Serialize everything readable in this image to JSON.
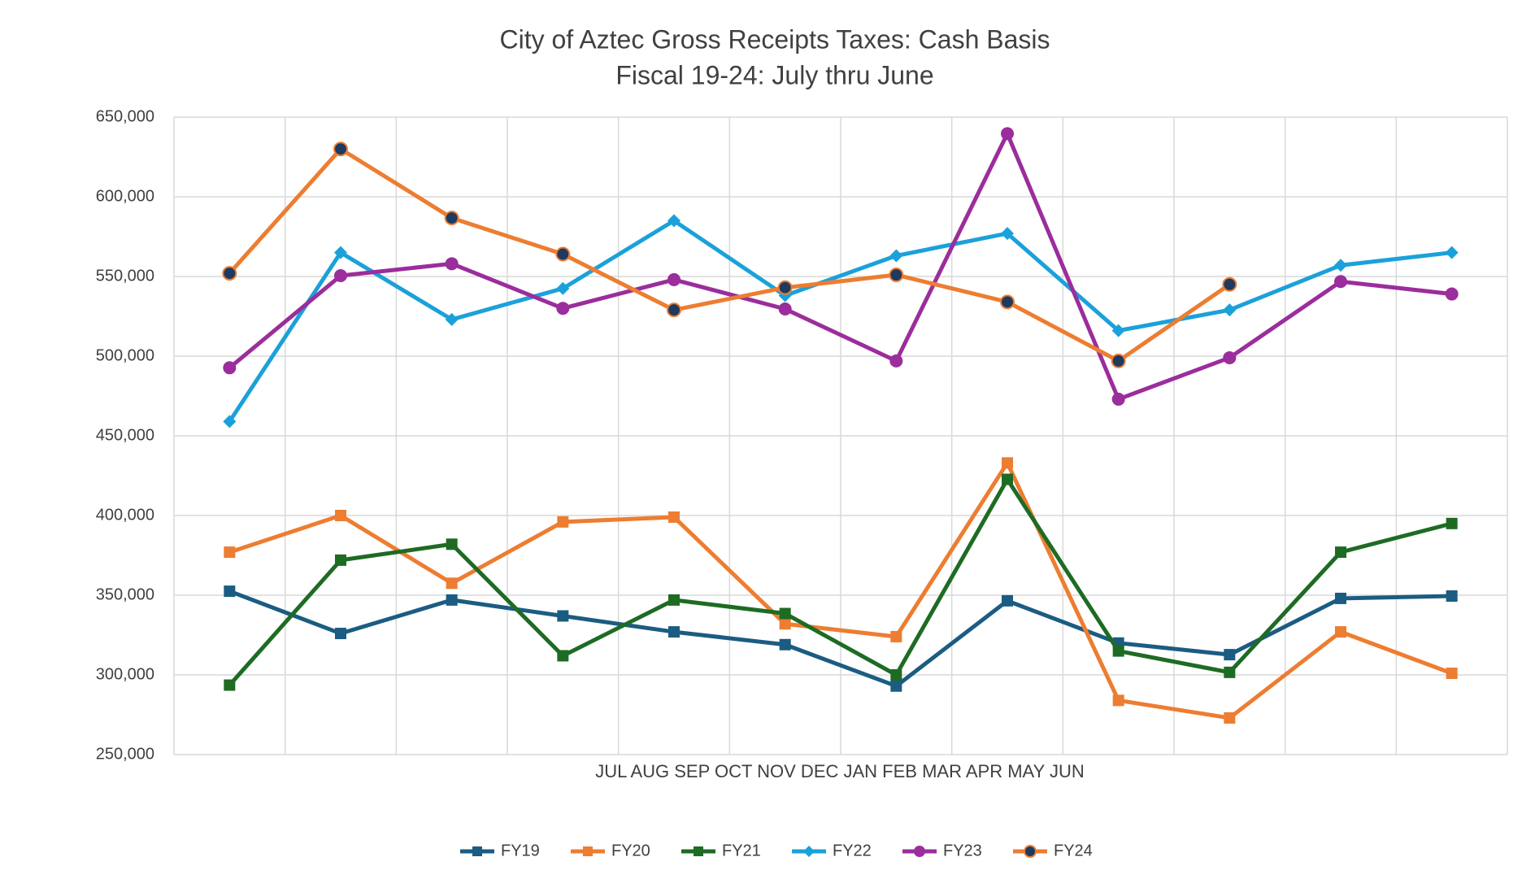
{
  "chart_data": {
    "type": "line",
    "title": "City of Aztec Gross Receipts Taxes: Cash Basis",
    "subtitle": "Fiscal 19-24: July thru June",
    "x_label": "JUL AUG SEP OCT NOV DEC JAN FEB MAR APR MAY JUN",
    "categories": [
      null,
      null,
      null,
      null,
      null,
      null,
      null,
      null,
      null,
      null,
      null,
      null
    ],
    "ylim": [
      250000,
      650000
    ],
    "yticks": [
      {
        "value": 250000,
        "label": "250,000"
      },
      {
        "value": 300000,
        "label": "300,000"
      },
      {
        "value": 350000,
        "label": "350,000"
      },
      {
        "value": 400000,
        "label": "400,000"
      },
      {
        "value": 450000,
        "label": "450,000"
      },
      {
        "value": 500000,
        "label": "500,000"
      },
      {
        "value": 550000,
        "label": "550,000"
      },
      {
        "value": 600000,
        "label": "600,000"
      },
      {
        "value": 650000,
        "label": "650,000"
      }
    ],
    "grid": true,
    "legend": "bottom",
    "series": [
      {
        "name": "FY19",
        "color": "#1b5c82",
        "marker": "square",
        "values": [
          352500,
          326000,
          347000,
          337000,
          327000,
          319000,
          293000,
          346500,
          320000,
          312700,
          348000,
          349500
        ]
      },
      {
        "name": "FY20",
        "color": "#ed7d31",
        "marker": "square",
        "values": [
          377000,
          400000,
          357500,
          396000,
          399000,
          332000,
          324000,
          433000,
          284000,
          273000,
          327000,
          301000
        ]
      },
      {
        "name": "FY21",
        "color": "#1e6b24",
        "marker": "square",
        "values": [
          293600,
          372000,
          382000,
          312000,
          347000,
          338500,
          300000,
          422700,
          315000,
          301600,
          377000,
          395000
        ]
      },
      {
        "name": "FY22",
        "color": "#1ba1d9",
        "marker": "diamond",
        "values": [
          459000,
          565000,
          523000,
          542500,
          585000,
          538000,
          563000,
          577000,
          516000,
          529000,
          557000,
          565000
        ]
      },
      {
        "name": "FY23",
        "color": "#9b2d9c",
        "marker": "circle",
        "values": [
          492700,
          550500,
          558000,
          530000,
          548000,
          529600,
          497000,
          639600,
          473000,
          499000,
          546800,
          539000
        ]
      },
      {
        "name": "FY24",
        "color": "#ed7d31",
        "marker": "circle",
        "marker_color": "#1e3a5f",
        "values": [
          552000,
          630000,
          586700,
          564000,
          529000,
          543000,
          551000,
          534000,
          497000,
          545000,
          null,
          null
        ]
      }
    ]
  }
}
